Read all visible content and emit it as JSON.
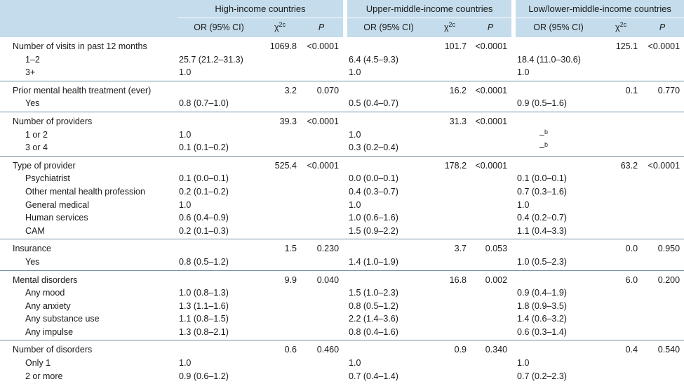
{
  "header": {
    "groups": [
      "High-income countries",
      "Upper-middle-income countries",
      "Low/lower-middle-income countries"
    ],
    "col_or": "OR (95% CI)",
    "col_chi": "χ",
    "col_chi_sup": "2c",
    "col_p": "P"
  },
  "sections": [
    {
      "label": "Number of visits in past 12 months",
      "stats": [
        [
          "1069.8",
          "<0.0001"
        ],
        [
          "101.7",
          "<0.0001"
        ],
        [
          "125.1",
          "<0.0001"
        ]
      ],
      "rows": [
        {
          "label": "1–2",
          "or": [
            "25.7 (21.2–31.3)",
            "6.4 (4.5–9.3)",
            "18.4 (11.0–30.6)"
          ]
        },
        {
          "label": "3+",
          "or": [
            "1.0",
            "1.0",
            "1.0"
          ]
        }
      ]
    },
    {
      "label": "Prior mental health treatment (ever)",
      "stats": [
        [
          "3.2",
          "0.070"
        ],
        [
          "16.2",
          "<0.0001"
        ],
        [
          "0.1",
          "0.770"
        ]
      ],
      "rows": [
        {
          "label": "Yes",
          "or": [
            "0.8 (0.7–1.0)",
            "0.5 (0.4–0.7)",
            "0.9 (0.5–1.6)"
          ]
        }
      ]
    },
    {
      "label": "Number of providers",
      "stats": [
        [
          "39.3",
          "<0.0001"
        ],
        [
          "31.3",
          "<0.0001"
        ],
        [
          "",
          ""
        ]
      ],
      "rows": [
        {
          "label": "1 or 2",
          "or": [
            "1.0",
            "1.0",
            "–b"
          ]
        },
        {
          "label": "3 or 4",
          "or": [
            "0.1 (0.1–0.2)",
            "0.3 (0.2–0.4)",
            "–b"
          ]
        }
      ]
    },
    {
      "label": "Type of provider",
      "stats": [
        [
          "525.4",
          "<0.0001"
        ],
        [
          "178.2",
          "<0.0001"
        ],
        [
          "63.2",
          "<0.0001"
        ]
      ],
      "rows": [
        {
          "label": "Psychiatrist",
          "or": [
            "0.1 (0.0–0.1)",
            "0.0 (0.0–0.1)",
            "0.1 (0.0–0.1)"
          ]
        },
        {
          "label": "Other mental health profession",
          "or": [
            "0.2 (0.1–0.2)",
            "0.4 (0.3–0.7)",
            "0.7 (0.3–1.6)"
          ]
        },
        {
          "label": "General medical",
          "or": [
            "1.0",
            "1.0",
            "1.0"
          ]
        },
        {
          "label": "Human services",
          "or": [
            "0.6 (0.4–0.9)",
            "1.0 (0.6–1.6)",
            "0.4 (0.2–0.7)"
          ]
        },
        {
          "label": "CAM",
          "or": [
            "0.2 (0.1–0.3)",
            "1.5 (0.9–2.2)",
            "1.1 (0.4–3.3)"
          ]
        }
      ]
    },
    {
      "label": "Insurance",
      "stats": [
        [
          "1.5",
          "0.230"
        ],
        [
          "3.7",
          "0.053"
        ],
        [
          "0.0",
          "0.950"
        ]
      ],
      "rows": [
        {
          "label": "Yes",
          "or": [
            "0.8 (0.5–1.2)",
            "1.4 (1.0–1.9)",
            "1.0 (0.5–2.3)"
          ]
        }
      ]
    },
    {
      "label": "Mental disorders",
      "stats": [
        [
          "9.9",
          "0.040"
        ],
        [
          "16.8",
          "0.002"
        ],
        [
          "6.0",
          "0.200"
        ]
      ],
      "rows": [
        {
          "label": "Any mood",
          "or": [
            "1.0 (0.8–1.3)",
            "1.5 (1.0–2.3)",
            "0.9 (0.4–1.9)"
          ]
        },
        {
          "label": "Any anxiety",
          "or": [
            "1.3 (1.1–1.6)",
            "0.8 (0.5–1.2)",
            "1.8 (0.9–3.5)"
          ]
        },
        {
          "label": "Any substance use",
          "or": [
            "1.1 (0.8–1.5)",
            "2.2 (1.4–3.6)",
            "1.4 (0.6–3.2)"
          ]
        },
        {
          "label": "Any impulse",
          "or": [
            "1.3 (0.8–2.1)",
            "0.8 (0.4–1.6)",
            "0.6 (0.3–1.4)"
          ]
        }
      ]
    },
    {
      "label": "Number of disorders",
      "stats": [
        [
          "0.6",
          "0.460"
        ],
        [
          "0.9",
          "0.340"
        ],
        [
          "0.4",
          "0.540"
        ]
      ],
      "rows": [
        {
          "label": "Only 1",
          "or": [
            "1.0",
            "1.0",
            "1.0"
          ]
        },
        {
          "label": "2 or more",
          "or": [
            "0.9 (0.6–1.2)",
            "0.7 (0.4–1.4)",
            "0.7 (0.2–2.3)"
          ]
        }
      ]
    }
  ]
}
